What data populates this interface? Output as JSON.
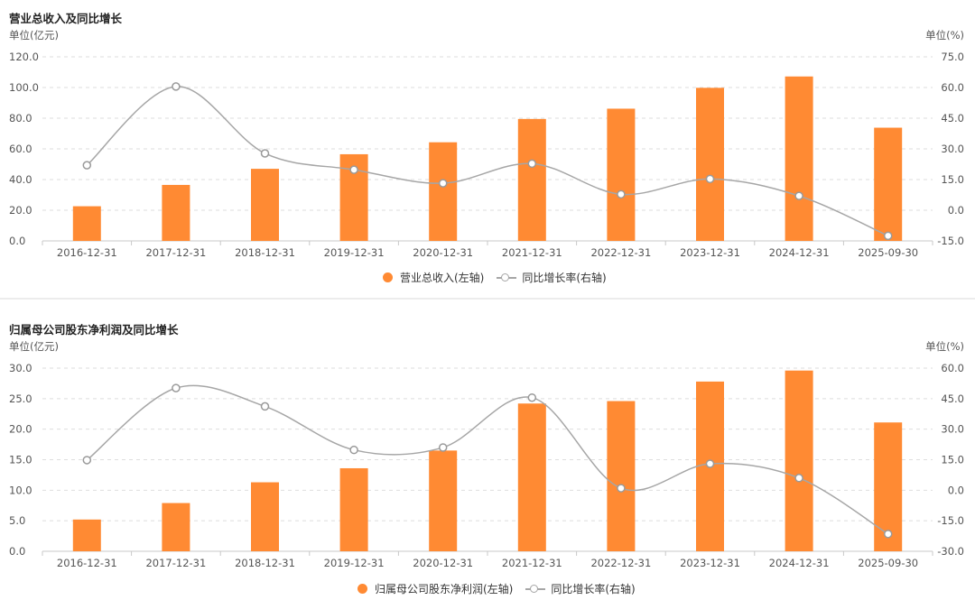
{
  "chart_data": [
    {
      "type": "bar",
      "title": "营业总收入及同比增长",
      "left_unit": "单位(亿元)",
      "right_unit": "单位(%)",
      "categories": [
        "2016-12-31",
        "2017-12-31",
        "2018-12-31",
        "2019-12-31",
        "2020-12-31",
        "2021-12-31",
        "2022-12-31",
        "2023-12-31",
        "2024-12-31",
        "2025-09-30"
      ],
      "left_axis": {
        "min": 0,
        "max": 120,
        "ticks": [
          "0.0",
          "20.0",
          "40.0",
          "60.0",
          "80.0",
          "100.0",
          "120.0"
        ]
      },
      "right_axis": {
        "min": -15,
        "max": 75,
        "ticks": [
          "-15.0",
          "0.0",
          "15.0",
          "30.0",
          "45.0",
          "60.0",
          "75.0"
        ]
      },
      "grid": true,
      "series": [
        {
          "name": "营业总收入(左轴)",
          "type": "bar",
          "axis": "left",
          "color": "#ff8a33",
          "values": [
            22.6,
            36.5,
            47.0,
            56.5,
            64.3,
            79.5,
            86.2,
            99.8,
            107.2,
            73.8
          ]
        },
        {
          "name": "同比增长率(右轴)",
          "type": "line",
          "axis": "right",
          "color": "#a6a6a6",
          "values": [
            22.0,
            60.5,
            27.8,
            19.8,
            13.2,
            22.8,
            7.8,
            15.3,
            7.0,
            -12.5
          ]
        }
      ],
      "legend_position": "bottom-center"
    },
    {
      "type": "bar",
      "title": "归属母公司股东净利润及同比增长",
      "left_unit": "单位(亿元)",
      "right_unit": "单位(%)",
      "categories": [
        "2016-12-31",
        "2017-12-31",
        "2018-12-31",
        "2019-12-31",
        "2020-12-31",
        "2021-12-31",
        "2022-12-31",
        "2023-12-31",
        "2024-12-31",
        "2025-09-30"
      ],
      "left_axis": {
        "min": 0,
        "max": 30,
        "ticks": [
          "0.0",
          "5.0",
          "10.0",
          "15.0",
          "20.0",
          "25.0",
          "30.0"
        ]
      },
      "right_axis": {
        "min": -30,
        "max": 60,
        "ticks": [
          "-30.0",
          "-15.0",
          "0.0",
          "15.0",
          "30.0",
          "45.0",
          "60.0"
        ]
      },
      "grid": true,
      "series": [
        {
          "name": "归属母公司股东净利润(左轴)",
          "type": "bar",
          "axis": "left",
          "color": "#ff8a33",
          "values": [
            5.2,
            7.9,
            11.3,
            13.6,
            16.5,
            24.2,
            24.6,
            27.8,
            29.6,
            21.1
          ]
        },
        {
          "name": "同比增长率(右轴)",
          "type": "line",
          "axis": "right",
          "color": "#a6a6a6",
          "values": [
            14.8,
            50.2,
            41.2,
            19.8,
            21.0,
            45.5,
            1.0,
            13.0,
            6.0,
            -21.5
          ]
        }
      ],
      "legend_position": "bottom-center"
    }
  ]
}
